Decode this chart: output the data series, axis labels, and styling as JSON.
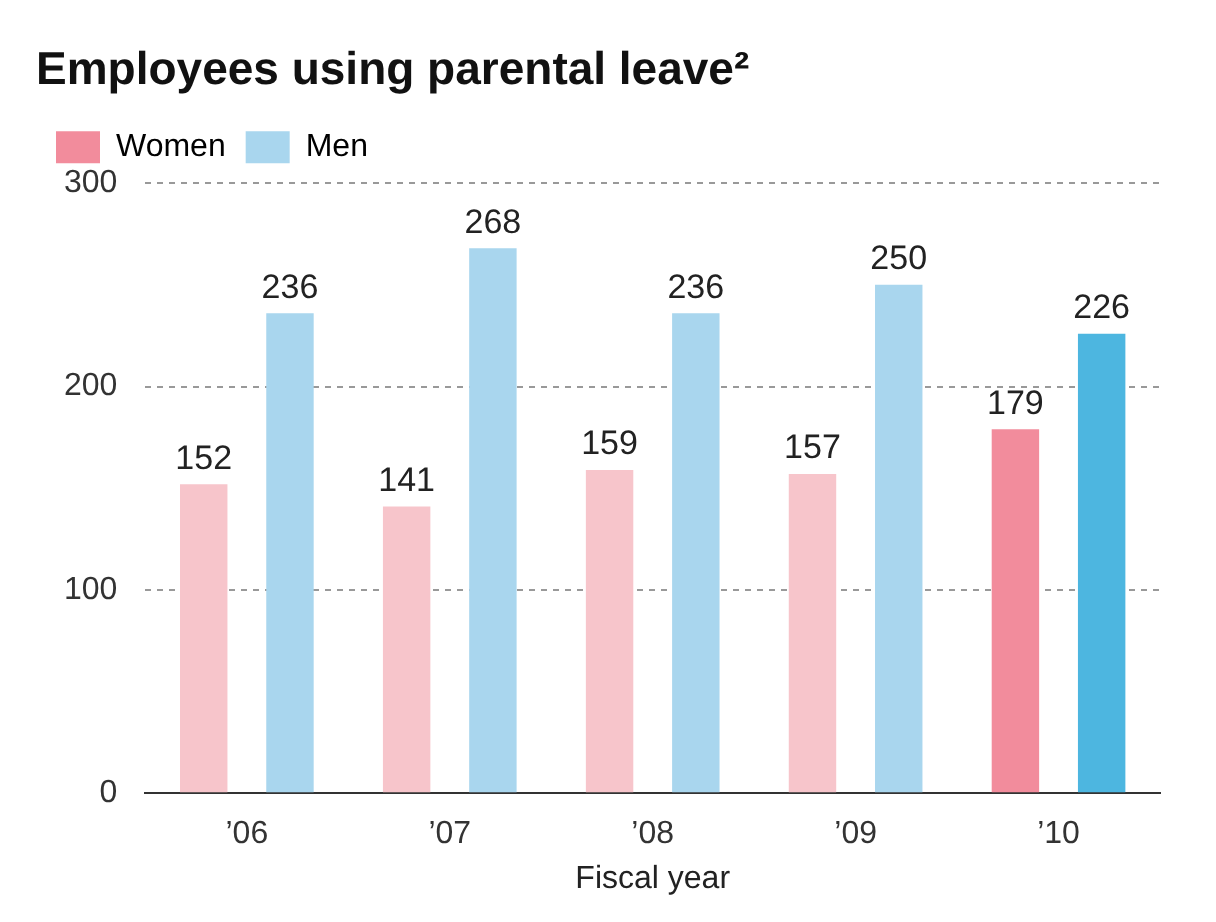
{
  "chart_data": {
    "type": "bar",
    "title": "Employees using parental leave²",
    "xlabel": "Fiscal year",
    "categories": [
      "’06",
      "’07",
      "’08",
      "’09",
      "’10"
    ],
    "series": [
      {
        "name": "Women",
        "color": "#f28c9c",
        "colors": [
          "#f7c5cb",
          "#f7c5cb",
          "#f7c5cb",
          "#f7c5cb",
          "#f28c9c"
        ],
        "values": [
          152,
          141,
          159,
          157,
          179
        ]
      },
      {
        "name": "Men",
        "color": "#a9d6ee",
        "colors": [
          "#a9d6ee",
          "#a9d6ee",
          "#a9d6ee",
          "#a9d6ee",
          "#4db6e0"
        ],
        "values": [
          236,
          268,
          236,
          250,
          226
        ]
      }
    ],
    "ylim": [
      0,
      300
    ],
    "yticks": [
      0,
      100,
      200,
      300
    ],
    "grid": "y",
    "legend": "top left",
    "data_labels": true
  }
}
